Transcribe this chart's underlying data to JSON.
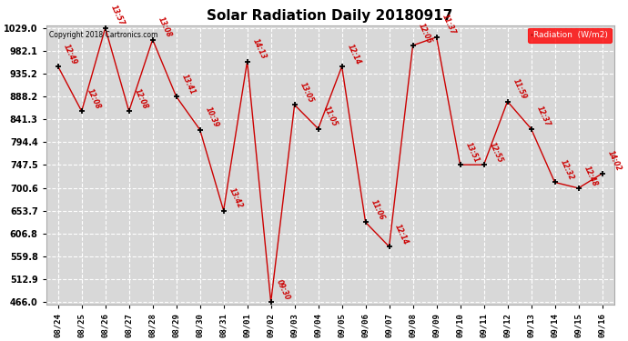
{
  "title": "Solar Radiation Daily 20180917",
  "copyright_text": "Copyright 2018 Cartronics.com",
  "legend_label": "Radiation  (W/m2)",
  "background_color": "#ffffff",
  "plot_bg_color": "#d8d8d8",
  "grid_color": "#ffffff",
  "line_color": "#cc0000",
  "marker_color": "#000000",
  "annotation_color": "#cc0000",
  "x_labels": [
    "08/24",
    "08/25",
    "08/26",
    "08/27",
    "08/28",
    "08/29",
    "08/30",
    "08/31",
    "09/01",
    "09/02",
    "09/03",
    "09/04",
    "09/05",
    "09/06",
    "09/07",
    "09/08",
    "09/09",
    "09/10",
    "09/11",
    "09/12",
    "09/13",
    "09/14",
    "09/15",
    "09/16"
  ],
  "y_values": [
    950,
    858,
    1029,
    858,
    1005,
    888,
    820,
    654,
    960,
    466,
    871,
    822,
    950,
    630,
    580,
    993,
    1010,
    748,
    748,
    878,
    822,
    712,
    700,
    730
  ],
  "annotations": [
    "12:49",
    "12:08",
    "13:57",
    "12:08",
    "13:08",
    "13:41",
    "10:39",
    "13:42",
    "14:13",
    "09:30",
    "13:05",
    "11:05",
    "12:14",
    "11:06",
    "12:14",
    "12:05",
    "11:37",
    "13:51",
    "12:55",
    "11:59",
    "12:37",
    "12:32",
    "12:48",
    "14:02"
  ],
  "ylim_min": 466.0,
  "ylim_max": 1029.0,
  "yticks": [
    466.0,
    512.9,
    559.8,
    606.8,
    653.7,
    700.6,
    747.5,
    794.4,
    841.3,
    888.2,
    935.2,
    982.1,
    1029.0
  ],
  "ytick_labels": [
    "466.0",
    "512.9",
    "559.8",
    "606.8",
    "653.7",
    "700.6",
    "747.5",
    "794.4",
    "841.3",
    "888.2",
    "935.2",
    "982.1",
    "1029.0"
  ],
  "figwidth": 6.9,
  "figheight": 3.75,
  "dpi": 100
}
